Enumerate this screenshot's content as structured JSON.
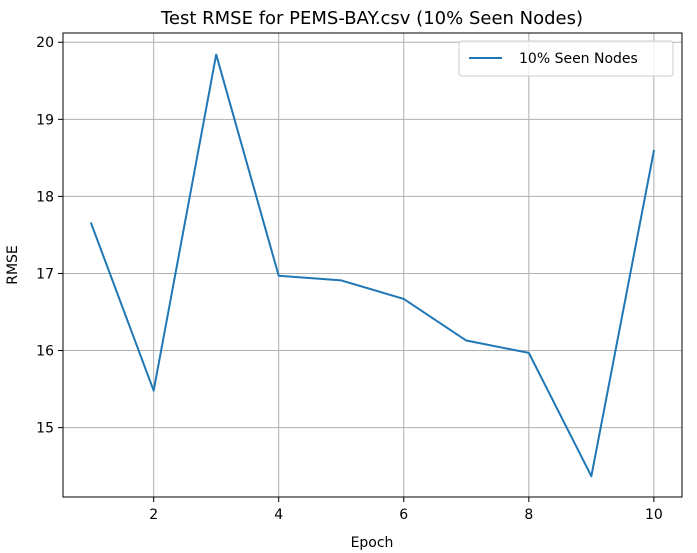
{
  "chart_data": {
    "type": "line",
    "title": "Test RMSE for PEMS-BAY.csv (10% Seen Nodes)",
    "xlabel": "Epoch",
    "ylabel": "RMSE",
    "xlim": [
      0.55,
      10.45
    ],
    "ylim": [
      14.1,
      20.12
    ],
    "xticks": [
      2,
      4,
      6,
      8,
      10
    ],
    "yticks": [
      15,
      16,
      17,
      18,
      19,
      20
    ],
    "grid": true,
    "legend_position": "top-right",
    "series": [
      {
        "name": "10% Seen Nodes",
        "color": "#1f77b4",
        "x": [
          1,
          2,
          3,
          4,
          5,
          6,
          7,
          8,
          9,
          10
        ],
        "y": [
          17.65,
          15.48,
          19.84,
          16.97,
          16.91,
          16.67,
          16.13,
          15.97,
          14.37,
          18.59
        ]
      }
    ]
  }
}
